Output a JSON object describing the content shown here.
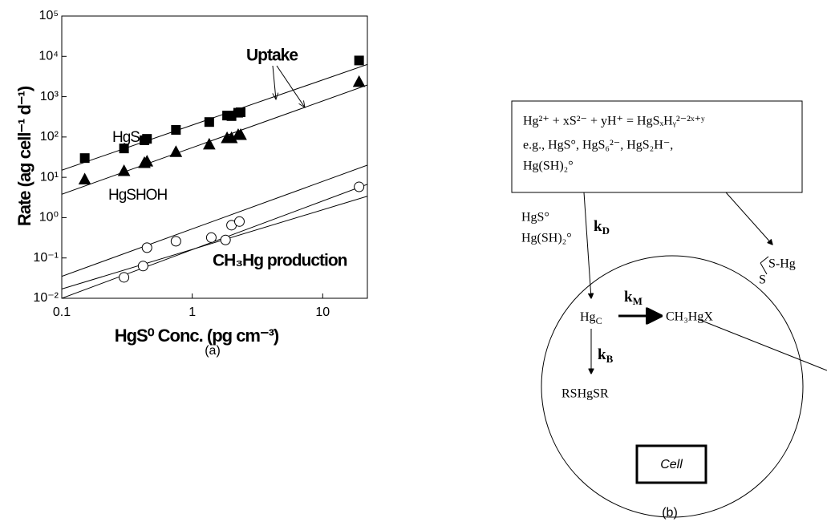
{
  "chart_data": {
    "type": "scatter",
    "panel_label": "(a)",
    "y_label": "Rate (ag cell⁻¹ d⁻¹)",
    "x_label": "HgS⁰ Conc. (pg cm⁻³)",
    "log_x": true,
    "log_y": true,
    "xlim": [
      0.1,
      22
    ],
    "ylim": [
      0.01,
      100000
    ],
    "xticks": [
      0.1,
      1,
      10
    ],
    "yticks": [
      {
        "value": 0.01,
        "label": "10⁻²"
      },
      {
        "value": 0.1,
        "label": "10⁻¹"
      },
      {
        "value": 1,
        "label": "10⁰"
      },
      {
        "value": 10,
        "label": "10¹"
      },
      {
        "value": 100,
        "label": "10²"
      },
      {
        "value": 1000,
        "label": "10³"
      },
      {
        "value": 10000,
        "label": "10⁴"
      },
      {
        "value": 100000,
        "label": "10⁵"
      }
    ],
    "series": [
      {
        "marker": "square",
        "color": "#000000",
        "x": [
          0.15,
          0.3,
          0.43,
          0.45,
          0.75,
          1.35,
          1.85,
          2.0,
          2.25,
          2.35,
          19
        ],
        "values": [
          30,
          52,
          83,
          90,
          150,
          235,
          340,
          330,
          400,
          410,
          7900
        ]
      },
      {
        "marker": "triangle",
        "color": "#000000",
        "x": [
          0.15,
          0.3,
          0.43,
          0.45,
          0.75,
          1.35,
          1.85,
          2.0,
          2.25,
          2.35,
          19
        ],
        "values": [
          9,
          14.5,
          23,
          25,
          43,
          66,
          95,
          95,
          114,
          114,
          2350
        ]
      },
      {
        "marker": "circle",
        "color": "#000000",
        "x": [
          0.3,
          0.42,
          0.45,
          0.75,
          1.4,
          1.8,
          2.0,
          2.3,
          19
        ],
        "values": [
          0.033,
          0.063,
          0.18,
          0.26,
          0.32,
          0.28,
          0.65,
          0.8,
          5.8
        ]
      }
    ],
    "fits": [
      {
        "x": [
          0.1,
          22
        ],
        "values": [
          15,
          6300
        ]
      },
      {
        "x": [
          0.1,
          22
        ],
        "values": [
          3.8,
          1950
        ]
      },
      {
        "x": [
          0.1,
          22
        ],
        "values": [
          0.035,
          20
        ]
      },
      {
        "x": [
          0.1,
          22
        ],
        "values": [
          0.01,
          6.7
        ]
      },
      {
        "x": [
          0.1,
          22
        ],
        "values": [
          0.017,
          3.4
        ]
      }
    ],
    "annotations": [
      "Uptake",
      "HgS",
      "HgSHOH",
      "CH₃Hg production"
    ]
  },
  "diagram": {
    "panel_label": "(b)",
    "box_lines": [
      "Hg²⁺ + xS²⁻ + yH⁺ = HgSₓHᵧ²⁻²ˣ⁺ʸ",
      "e.g., HgS°, HgS₆²⁻, HgS₂H⁻,",
      "Hg(SH)₂°"
    ],
    "outside_species": [
      "HgS°",
      "Hg(SH)₂°"
    ],
    "k_d": {
      "main": "k",
      "sub": "D"
    },
    "k_m": {
      "main": "k",
      "sub": "M"
    },
    "k_b": {
      "main": "k",
      "sub": "B"
    },
    "hg_c": {
      "main": "Hg",
      "sub": "C"
    },
    "methyl": "CH₃HgX",
    "bound": "RSHgSR",
    "cell": "Cell",
    "surface": [
      "S-Hg",
      "S"
    ]
  }
}
